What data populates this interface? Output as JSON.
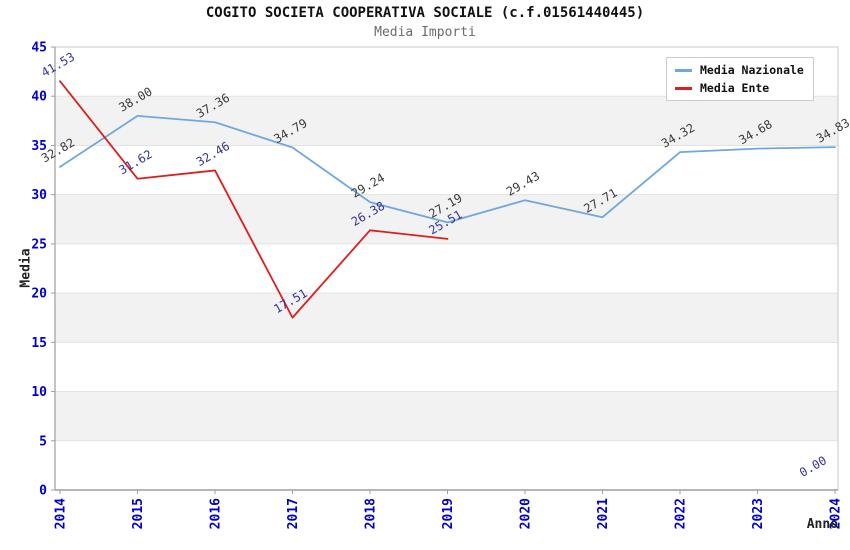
{
  "chart_data": {
    "type": "line",
    "title": "COGITO SOCIETA COOPERATIVA SOCIALE (c.f.01561440445)",
    "subtitle": "Media Importi",
    "xlabel": "Anno",
    "ylabel": "Media",
    "ylim": [
      0,
      45
    ],
    "y_tick_step": 5,
    "y_ticks": [
      0,
      5,
      10,
      15,
      20,
      25,
      30,
      35,
      40,
      45
    ],
    "x": [
      2014,
      2015,
      2016,
      2017,
      2018,
      2019,
      2020,
      2021,
      2022,
      2023,
      2024
    ],
    "series": [
      {
        "name": "Media Nazionale",
        "color": "#6fa8dc",
        "label_color": "#3a3a3a",
        "values": [
          32.82,
          38.0,
          37.36,
          34.79,
          29.24,
          27.19,
          29.43,
          27.71,
          34.32,
          34.68,
          34.83
        ]
      },
      {
        "name": "Media Ente",
        "color": "#dd1e1e",
        "label_color": "#333399",
        "values": [
          41.53,
          31.62,
          32.46,
          17.51,
          26.38,
          25.51,
          null,
          null,
          null,
          null,
          0.0
        ]
      }
    ],
    "legend_position": "top-right",
    "grid": "horizontal-bands",
    "band_color": "#f2f2f2",
    "gridline_color": "#e3e3e3",
    "axis_color": "#9e9e9e",
    "tick_label_color": "#0000cc",
    "label_decimals": 2,
    "data_label_rotation_deg": -30,
    "x_tick_rotation_deg": -90
  }
}
